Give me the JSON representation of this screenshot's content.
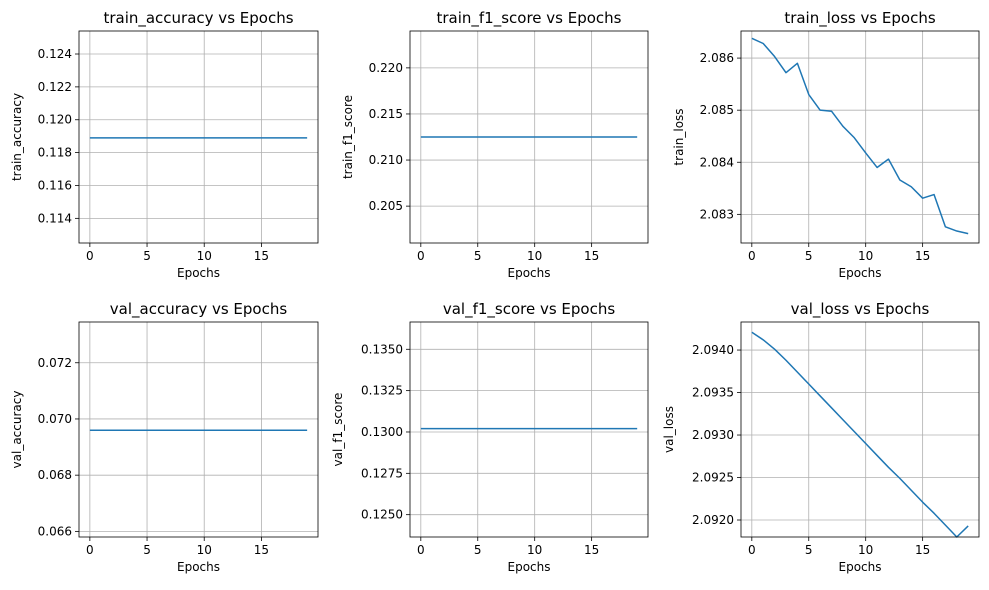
{
  "chart_data": [
    {
      "type": "line",
      "title": "train_accuracy vs Epochs",
      "xlabel": "Epochs",
      "ylabel": "train_accuracy",
      "xlim": [
        -0.95,
        19.95
      ],
      "ylim": [
        0.1125,
        0.1254
      ],
      "xticks": [
        0,
        5,
        10,
        15
      ],
      "yticks": [
        0.114,
        0.116,
        0.118,
        0.12,
        0.122,
        0.124
      ],
      "ytick_labels": [
        "0.114",
        "0.116",
        "0.118",
        "0.120",
        "0.122",
        "0.124"
      ],
      "grid": true,
      "color": "#1f77b4",
      "x": [
        0,
        1,
        2,
        3,
        4,
        5,
        6,
        7,
        8,
        9,
        10,
        11,
        12,
        13,
        14,
        15,
        16,
        17,
        18,
        19
      ],
      "y": [
        0.1189,
        0.1189,
        0.1189,
        0.1189,
        0.1189,
        0.1189,
        0.1189,
        0.1189,
        0.1189,
        0.1189,
        0.1189,
        0.1189,
        0.1189,
        0.1189,
        0.1189,
        0.1189,
        0.1189,
        0.1189,
        0.1189,
        0.1189
      ]
    },
    {
      "type": "line",
      "title": "train_f1_score vs Epochs",
      "xlabel": "Epochs",
      "ylabel": "train_f1_score",
      "xlim": [
        -0.95,
        19.95
      ],
      "ylim": [
        0.201,
        0.224
      ],
      "xticks": [
        0,
        5,
        10,
        15
      ],
      "yticks": [
        0.205,
        0.21,
        0.215,
        0.22
      ],
      "ytick_labels": [
        "0.205",
        "0.210",
        "0.215",
        "0.220"
      ],
      "grid": true,
      "color": "#1f77b4",
      "x": [
        0,
        1,
        2,
        3,
        4,
        5,
        6,
        7,
        8,
        9,
        10,
        11,
        12,
        13,
        14,
        15,
        16,
        17,
        18,
        19
      ],
      "y": [
        0.2125,
        0.2125,
        0.2125,
        0.2125,
        0.2125,
        0.2125,
        0.2125,
        0.2125,
        0.2125,
        0.2125,
        0.2125,
        0.2125,
        0.2125,
        0.2125,
        0.2125,
        0.2125,
        0.2125,
        0.2125,
        0.2125,
        0.2125
      ]
    },
    {
      "type": "line",
      "title": "train_loss vs Epochs",
      "xlabel": "Epochs",
      "ylabel": "train_loss",
      "xlim": [
        -0.95,
        19.95
      ],
      "ylim": [
        2.08245,
        2.08652
      ],
      "xticks": [
        0,
        5,
        10,
        15
      ],
      "yticks": [
        2.083,
        2.084,
        2.085,
        2.086
      ],
      "ytick_labels": [
        "2.083",
        "2.084",
        "2.085",
        "2.086"
      ],
      "grid": true,
      "color": "#1f77b4",
      "x": [
        0,
        1,
        2,
        3,
        4,
        5,
        6,
        7,
        8,
        9,
        10,
        11,
        12,
        13,
        14,
        15,
        16,
        17,
        18,
        19
      ],
      "y": [
        2.08638,
        2.08628,
        2.08603,
        2.08572,
        2.0859,
        2.0853,
        2.085,
        2.08498,
        2.08469,
        2.08447,
        2.08418,
        2.0839,
        2.08406,
        2.08366,
        2.08353,
        2.08331,
        2.08338,
        2.08276,
        2.08268,
        2.08263
      ]
    },
    {
      "type": "line",
      "title": "val_accuracy vs Epochs",
      "xlabel": "Epochs",
      "ylabel": "val_accuracy",
      "xlim": [
        -0.95,
        19.95
      ],
      "ylim": [
        0.0658,
        0.07345
      ],
      "xticks": [
        0,
        5,
        10,
        15
      ],
      "yticks": [
        0.066,
        0.068,
        0.07,
        0.072
      ],
      "ytick_labels": [
        "0.066",
        "0.068",
        "0.070",
        "0.072"
      ],
      "grid": true,
      "color": "#1f77b4",
      "x": [
        0,
        1,
        2,
        3,
        4,
        5,
        6,
        7,
        8,
        9,
        10,
        11,
        12,
        13,
        14,
        15,
        16,
        17,
        18,
        19
      ],
      "y": [
        0.0696,
        0.0696,
        0.0696,
        0.0696,
        0.0696,
        0.0696,
        0.0696,
        0.0696,
        0.0696,
        0.0696,
        0.0696,
        0.0696,
        0.0696,
        0.0696,
        0.0696,
        0.0696,
        0.0696,
        0.0696,
        0.0696,
        0.0696
      ]
    },
    {
      "type": "line",
      "title": "val_f1_score vs Epochs",
      "xlabel": "Epochs",
      "ylabel": "val_f1_score",
      "xlim": [
        -0.95,
        19.95
      ],
      "ylim": [
        0.12365,
        0.13665
      ],
      "xticks": [
        0,
        5,
        10,
        15
      ],
      "yticks": [
        0.125,
        0.1275,
        0.13,
        0.1325,
        0.135
      ],
      "ytick_labels": [
        "0.1250",
        "0.1275",
        "0.1300",
        "0.1325",
        "0.1350"
      ],
      "grid": true,
      "color": "#1f77b4",
      "x": [
        0,
        1,
        2,
        3,
        4,
        5,
        6,
        7,
        8,
        9,
        10,
        11,
        12,
        13,
        14,
        15,
        16,
        17,
        18,
        19
      ],
      "y": [
        0.1302,
        0.1302,
        0.1302,
        0.1302,
        0.1302,
        0.1302,
        0.1302,
        0.1302,
        0.1302,
        0.1302,
        0.1302,
        0.1302,
        0.1302,
        0.1302,
        0.1302,
        0.1302,
        0.1302,
        0.1302,
        0.1302,
        0.1302
      ]
    },
    {
      "type": "line",
      "title": "val_loss vs Epochs",
      "xlabel": "Epochs",
      "ylabel": "val_loss",
      "xlim": [
        -0.95,
        19.95
      ],
      "ylim": [
        2.0918,
        2.09433
      ],
      "xticks": [
        0,
        5,
        10,
        15
      ],
      "yticks": [
        2.092,
        2.0925,
        2.093,
        2.0935,
        2.094
      ],
      "ytick_labels": [
        "2.0920",
        "2.0925",
        "2.0930",
        "2.0935",
        "2.0940"
      ],
      "grid": true,
      "color": "#1f77b4",
      "x": [
        0,
        1,
        2,
        3,
        4,
        5,
        6,
        7,
        8,
        9,
        10,
        11,
        12,
        13,
        14,
        15,
        16,
        17,
        18,
        19
      ],
      "y": [
        2.09421,
        2.09412,
        2.09401,
        2.09388,
        2.09374,
        2.0936,
        2.09346,
        2.09332,
        2.09318,
        2.09304,
        2.0929,
        2.09276,
        2.09262,
        2.09249,
        2.09235,
        2.09221,
        2.09208,
        2.09194,
        2.0918,
        2.09193
      ]
    }
  ]
}
